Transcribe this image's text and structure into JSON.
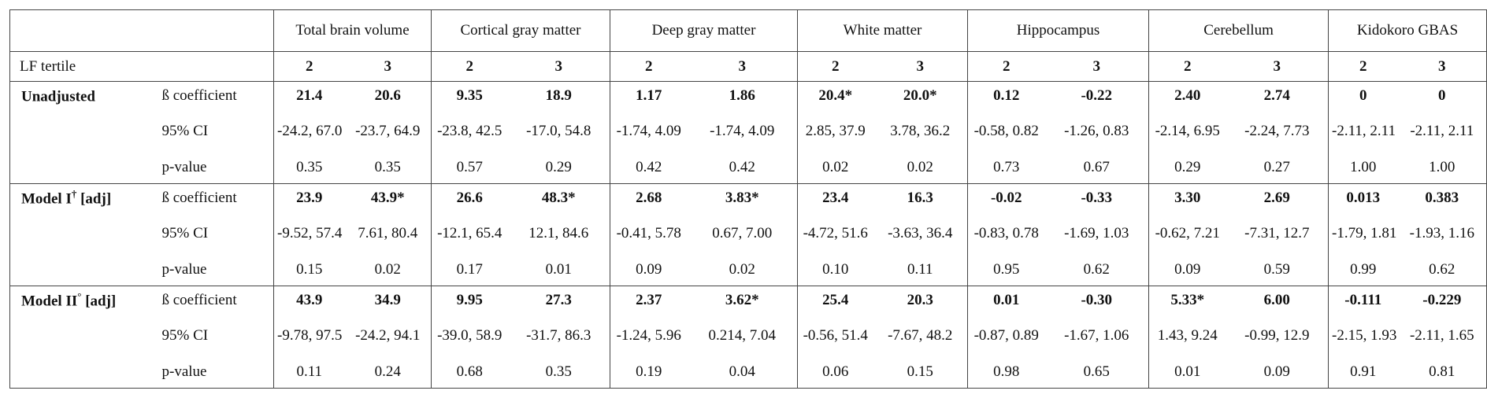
{
  "table": {
    "columns": [
      "Total brain volume",
      "Cortical gray matter",
      "Deep gray matter",
      "White matter",
      "Hippocampus",
      "Cerebellum",
      "Kidokoro GBAS"
    ],
    "tertile_label": "LF tertile",
    "tertiles": [
      "2",
      "3"
    ],
    "metric_labels": {
      "beta": "ß coefficient",
      "ci": "95% CI",
      "p": "p-value"
    },
    "groups": [
      {
        "name": "Unadjusted",
        "name_sup": "",
        "name_suffix": "",
        "beta": [
          "21.4",
          "20.6",
          "9.35",
          "18.9",
          "1.17",
          "1.86",
          "20.4*",
          "20.0*",
          "0.12",
          "-0.22",
          "2.40",
          "2.74",
          "0",
          "0"
        ],
        "ci": [
          "-24.2,\n67.0",
          "-23.7,\n64.9",
          "-23.8,\n42.5",
          "-17.0,\n54.8",
          "-1.74,\n4.09",
          "-1.74,\n4.09",
          "2.85,\n37.9",
          "3.78,\n36.2",
          "-0.58,\n0.82",
          "-1.26,\n0.83",
          "-2.14,\n6.95",
          "-2.24,\n7.73",
          "-2.11,\n2.11",
          "-2.11,\n2.11"
        ],
        "p": [
          "0.35",
          "0.35",
          "0.57",
          "0.29",
          "0.42",
          "0.42",
          "0.02",
          "0.02",
          "0.73",
          "0.67",
          "0.29",
          "0.27",
          "1.00",
          "1.00"
        ]
      },
      {
        "name": "Model I",
        "name_sup": "†",
        "name_suffix": " [adj]",
        "beta": [
          "23.9",
          "43.9*",
          "26.6",
          "48.3*",
          "2.68",
          "3.83*",
          "23.4",
          "16.3",
          "-0.02",
          "-0.33",
          "3.30",
          "2.69",
          "0.013",
          "0.383"
        ],
        "ci": [
          "-9.52,\n57.4",
          "7.61,\n80.4",
          "-12.1,\n65.4",
          "12.1,\n84.6",
          "-0.41,\n5.78",
          "0.67,\n7.00",
          "-4.72,\n51.6",
          "-3.63,\n36.4",
          "-0.83,\n0.78",
          "-1.69,\n1.03",
          "-0.62,\n7.21",
          "-7.31,\n12.7",
          "-1.79,\n1.81",
          "-1.93,\n1.16"
        ],
        "p": [
          "0.15",
          "0.02",
          "0.17",
          "0.01",
          "0.09",
          "0.02",
          "0.10",
          "0.11",
          "0.95",
          "0.62",
          "0.09",
          "0.59",
          "0.99",
          "0.62"
        ]
      },
      {
        "name": "Model II",
        "name_sup": "°",
        "name_suffix": " [adj]",
        "beta": [
          "43.9",
          "34.9",
          "9.95",
          "27.3",
          "2.37",
          "3.62*",
          "25.4",
          "20.3",
          "0.01",
          "-0.30",
          "5.33*",
          "6.00",
          "-0.111",
          "-0.229"
        ],
        "ci": [
          "-9.78,\n97.5",
          "-24.2,\n94.1",
          "-39.0,\n58.9",
          "-31.7,\n86.3",
          "-1.24,\n5.96",
          "0.214,\n7.04",
          "-0.56,\n51.4",
          "-7.67,\n48.2",
          "-0.87,\n0.89",
          "-1.67,\n1.06",
          "1.43,\n9.24",
          "-0.99,\n12.9",
          "-2.15,\n1.93",
          "-2.11,\n1.65"
        ],
        "p": [
          "0.11",
          "0.24",
          "0.68",
          "0.35",
          "0.19",
          "0.04",
          "0.06",
          "0.15",
          "0.98",
          "0.65",
          "0.01",
          "0.09",
          "0.91",
          "0.81"
        ]
      }
    ]
  }
}
